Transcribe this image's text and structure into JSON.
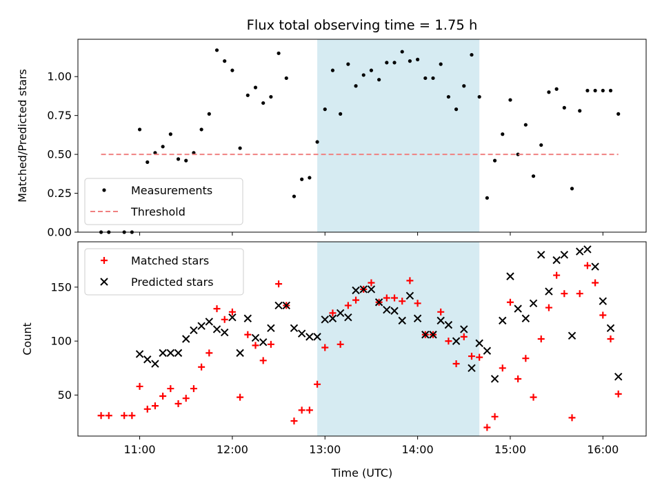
{
  "title": "Flux total observing time = 1.75 h",
  "xlabel": "Time (UTC)",
  "x_ticks": [
    "11:00",
    "12:00",
    "13:00",
    "14:00",
    "15:00",
    "16:00"
  ],
  "colors": {
    "measurements": "#000000",
    "threshold": "#f08080",
    "matched": "#ff0000",
    "predicted": "#000000",
    "span": "#add8e6"
  },
  "chart_data": [
    {
      "type": "scatter",
      "ylabel": "Matched/Predicted stars",
      "ylim": [
        0,
        1.24
      ],
      "y_ticks": [
        "0.00",
        "0.25",
        "0.50",
        "0.75",
        "1.00"
      ],
      "xlim": [
        "10:20",
        "16:28"
      ],
      "x_ticks": [
        "11:00",
        "12:00",
        "13:00",
        "14:00",
        "15:00",
        "16:00"
      ],
      "shaded_span": [
        "12:55",
        "14:40"
      ],
      "legend_position": "lower-left",
      "series": [
        {
          "name": "Measurements",
          "kind": "scatter",
          "x": [
            "10:35",
            "10:40",
            "10:50",
            "10:55",
            "11:00",
            "11:05",
            "11:10",
            "11:15",
            "11:20",
            "11:25",
            "11:30",
            "11:35",
            "11:40",
            "11:45",
            "11:50",
            "11:55",
            "12:00",
            "12:05",
            "12:10",
            "12:15",
            "12:20",
            "12:25",
            "12:30",
            "12:35",
            "12:40",
            "12:45",
            "12:50",
            "12:55",
            "13:00",
            "13:05",
            "13:10",
            "13:15",
            "13:20",
            "13:25",
            "13:30",
            "13:35",
            "13:40",
            "13:45",
            "13:50",
            "13:55",
            "14:00",
            "14:05",
            "14:10",
            "14:15",
            "14:20",
            "14:25",
            "14:30",
            "14:35",
            "14:40",
            "14:45",
            "14:50",
            "14:55",
            "15:00",
            "15:05",
            "15:10",
            "15:15",
            "15:20",
            "15:25",
            "15:30",
            "15:35",
            "15:40",
            "15:45",
            "15:50",
            "15:55",
            "16:00",
            "16:05",
            "16:10"
          ],
          "y": [
            0.0,
            0.0,
            0.0,
            0.0,
            0.66,
            0.45,
            0.51,
            0.55,
            0.63,
            0.47,
            0.46,
            0.51,
            0.66,
            0.76,
            1.17,
            1.1,
            1.04,
            0.54,
            0.88,
            0.93,
            0.83,
            0.87,
            1.15,
            0.99,
            0.23,
            0.34,
            0.35,
            0.58,
            0.79,
            1.04,
            0.76,
            1.08,
            0.94,
            1.01,
            1.04,
            0.98,
            1.09,
            1.09,
            1.16,
            1.1,
            1.11,
            0.99,
            0.99,
            1.08,
            0.87,
            0.79,
            0.94,
            1.14,
            0.87,
            0.22,
            0.46,
            0.63,
            0.85,
            0.5,
            0.69,
            0.36,
            0.56,
            0.9,
            0.92,
            0.8,
            0.28,
            0.78,
            0.91,
            0.91,
            0.91,
            0.91,
            0.76
          ]
        },
        {
          "name": "Threshold",
          "kind": "line",
          "x": [
            "10:35",
            "16:10"
          ],
          "y": [
            0.5,
            0.5
          ]
        }
      ]
    },
    {
      "type": "scatter",
      "ylabel": "Count",
      "ylim": [
        12,
        192
      ],
      "y_ticks": [
        "50",
        "100",
        "150"
      ],
      "xlim": [
        "10:20",
        "16:28"
      ],
      "x_ticks": [
        "11:00",
        "12:00",
        "13:00",
        "14:00",
        "15:00",
        "16:00"
      ],
      "shaded_span": [
        "12:55",
        "14:40"
      ],
      "legend_position": "top-left",
      "series": [
        {
          "name": "Matched stars",
          "kind": "plus",
          "x": [
            "10:35",
            "10:40",
            "10:50",
            "10:55",
            "11:00",
            "11:05",
            "11:10",
            "11:15",
            "11:20",
            "11:25",
            "11:30",
            "11:35",
            "11:40",
            "11:45",
            "11:50",
            "11:55",
            "12:00",
            "12:05",
            "12:10",
            "12:15",
            "12:20",
            "12:25",
            "12:30",
            "12:35",
            "12:40",
            "12:45",
            "12:50",
            "12:55",
            "13:00",
            "13:05",
            "13:10",
            "13:15",
            "13:20",
            "13:25",
            "13:30",
            "13:35",
            "13:40",
            "13:45",
            "13:50",
            "13:55",
            "14:00",
            "14:05",
            "14:10",
            "14:15",
            "14:20",
            "14:25",
            "14:30",
            "14:35",
            "14:40",
            "14:45",
            "14:50",
            "14:55",
            "15:00",
            "15:05",
            "15:10",
            "15:15",
            "15:20",
            "15:25",
            "15:30",
            "15:35",
            "15:40",
            "15:45",
            "15:50",
            "15:55",
            "16:00",
            "16:05",
            "16:10"
          ],
          "y": [
            31,
            31,
            31,
            31,
            58,
            37,
            40,
            49,
            56,
            42,
            47,
            56,
            76,
            89,
            130,
            120,
            127,
            48,
            106,
            96,
            82,
            97,
            153,
            133,
            26,
            36,
            36,
            60,
            94,
            126,
            97,
            133,
            138,
            148,
            154,
            136,
            140,
            140,
            137,
            156,
            135,
            106,
            106,
            127,
            100,
            79,
            104,
            86,
            85,
            20,
            30,
            75,
            136,
            65,
            84,
            48,
            102,
            131,
            161,
            144,
            29,
            144,
            170,
            154,
            124,
            102,
            51
          ]
        },
        {
          "name": "Predicted stars",
          "kind": "x",
          "x": [
            "11:00",
            "11:05",
            "11:10",
            "11:15",
            "11:20",
            "11:25",
            "11:30",
            "11:35",
            "11:40",
            "11:45",
            "11:50",
            "11:55",
            "12:00",
            "12:05",
            "12:10",
            "12:15",
            "12:20",
            "12:25",
            "12:30",
            "12:35",
            "12:40",
            "12:45",
            "12:50",
            "12:55",
            "13:00",
            "13:05",
            "13:10",
            "13:15",
            "13:20",
            "13:25",
            "13:30",
            "13:35",
            "13:40",
            "13:45",
            "13:50",
            "13:55",
            "14:00",
            "14:05",
            "14:10",
            "14:15",
            "14:20",
            "14:25",
            "14:30",
            "14:35",
            "14:40",
            "14:45",
            "14:50",
            "14:55",
            "15:00",
            "15:05",
            "15:10",
            "15:15",
            "15:20",
            "15:25",
            "15:30",
            "15:35",
            "15:40",
            "15:45",
            "15:50",
            "15:55",
            "16:00",
            "16:05",
            "16:10"
          ],
          "y": [
            88,
            83,
            79,
            89,
            89,
            89,
            102,
            110,
            114,
            118,
            111,
            108,
            122,
            89,
            121,
            103,
            99,
            112,
            133,
            133,
            112,
            107,
            104,
            104,
            120,
            121,
            126,
            122,
            147,
            148,
            148,
            136,
            129,
            128,
            119,
            142,
            121,
            106,
            106,
            119,
            115,
            100,
            111,
            75,
            98,
            91,
            65,
            119,
            160,
            130,
            121,
            135,
            180,
            146,
            175,
            180,
            105,
            183,
            185,
            169,
            137,
            112,
            67
          ]
        }
      ]
    }
  ]
}
